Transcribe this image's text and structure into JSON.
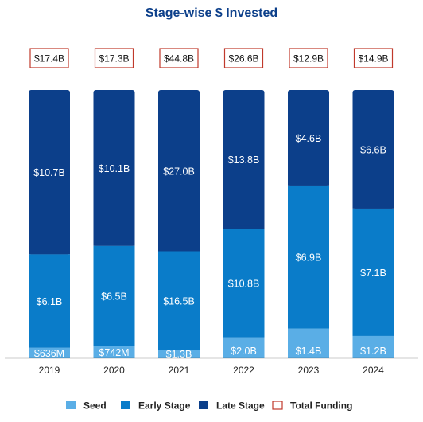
{
  "chart_data": {
    "type": "bar",
    "stacked": true,
    "title": "Stage-wise $ Invested",
    "xlabel": "",
    "ylabel": "",
    "categories": [
      "2019",
      "2020",
      "2021",
      "2022",
      "2023",
      "2024"
    ],
    "series": [
      {
        "name": "Seed",
        "unit": "$B",
        "values": [
          0.636,
          0.742,
          1.3,
          2.0,
          1.4,
          1.2
        ],
        "labels": [
          "$636M",
          "$742M",
          "$1.3B",
          "$2.0B",
          "$1.4B",
          "$1.2B"
        ],
        "color": "#5aaee6"
      },
      {
        "name": "Early Stage",
        "unit": "$B",
        "values": [
          6.1,
          6.5,
          16.5,
          10.8,
          6.9,
          7.1
        ],
        "labels": [
          "$6.1B",
          "$6.5B",
          "$16.5B",
          "$10.8B",
          "$6.9B",
          "$7.1B"
        ],
        "color": "#0a7cc9"
      },
      {
        "name": "Late Stage",
        "unit": "$B",
        "values": [
          10.7,
          10.1,
          27.0,
          13.8,
          4.6,
          6.6
        ],
        "labels": [
          "$10.7B",
          "$10.1B",
          "$27.0B",
          "$13.8B",
          "$4.6B",
          "$6.6B"
        ],
        "color": "#0c3f8a"
      }
    ],
    "totals": {
      "name": "Total Funding",
      "values": [
        17.4,
        17.3,
        44.8,
        26.6,
        12.9,
        14.9
      ],
      "labels": [
        "$17.4B",
        "$17.3B",
        "$44.8B",
        "$26.6B",
        "$12.9B",
        "$14.9B"
      ],
      "color": "#c0392b"
    },
    "normalized_to_100_percent": true,
    "legend_position": "bottom",
    "grid": false,
    "colors": {
      "title": "#0c3f8a",
      "bar_label": "#ffffff",
      "tick_label": "#222222",
      "axis": "#333333"
    }
  }
}
